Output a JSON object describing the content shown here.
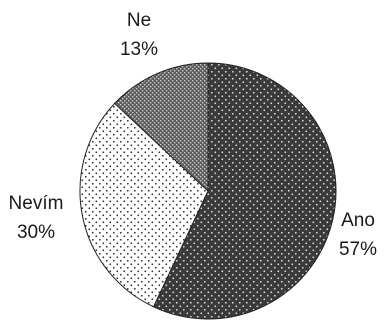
{
  "chart_data": {
    "type": "pie",
    "slices": [
      {
        "label": "Ano",
        "value": 57,
        "value_label": "57%",
        "color": "#3a3a3a",
        "pattern": "dense-dots"
      },
      {
        "label": "Nevím",
        "value": 30,
        "value_label": "30%",
        "color": "#ffffff",
        "pattern": "sparse-dots"
      },
      {
        "label": "Ne",
        "value": 13,
        "value_label": "13%",
        "color": "#6a6a6a",
        "pattern": "crosshatch"
      }
    ],
    "start": "12 o'clock",
    "direction": "clockwise",
    "legend": "none"
  }
}
